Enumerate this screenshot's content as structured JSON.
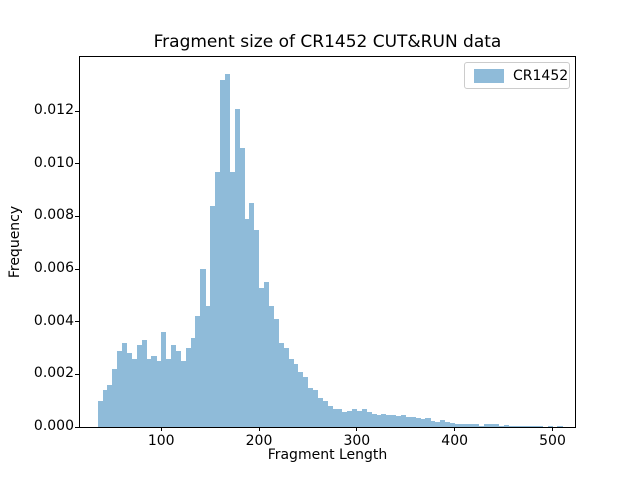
{
  "title": "Fragment size of CR1452 CUT&RUN data",
  "axes": {
    "xlabel": "Fragment Length",
    "ylabel": "Frequency",
    "x_ticks": [
      100,
      200,
      300,
      400,
      500
    ],
    "y_tick_labels": [
      "0.000",
      "0.002",
      "0.004",
      "0.006",
      "0.008",
      "0.010",
      "0.012"
    ]
  },
  "legend": {
    "items": [
      {
        "label": "CR1452",
        "color": "#8fbbd9"
      }
    ]
  },
  "colors": {
    "bar": "#8fbbd9",
    "axis": "#000000",
    "legend_border": "#cccccc",
    "background": "#ffffff"
  },
  "chart_data": {
    "type": "bar",
    "subtype": "histogram",
    "title": "Fragment size of CR1452 CUT&RUN data",
    "xlabel": "Fragment Length",
    "ylabel": "Frequency",
    "legend_position": "upper right",
    "grid": false,
    "series_name": "CR1452",
    "bin_start": 35,
    "bin_width": 5,
    "xlim": [
      17,
      523
    ],
    "ylim": [
      0,
      0.014058
    ],
    "values": [
      0.001,
      0.0014,
      0.0016,
      0.0022,
      0.0029,
      0.0032,
      0.0028,
      0.0026,
      0.0031,
      0.0033,
      0.0026,
      0.0027,
      0.0025,
      0.0036,
      0.0026,
      0.0031,
      0.0029,
      0.0025,
      0.003,
      0.0034,
      0.0042,
      0.006,
      0.0046,
      0.0084,
      0.0097,
      0.0132,
      0.0134,
      0.0097,
      0.0121,
      0.0106,
      0.0079,
      0.0085,
      0.0075,
      0.0053,
      0.0055,
      0.0046,
      0.0041,
      0.0032,
      0.003,
      0.0026,
      0.0024,
      0.0021,
      0.0019,
      0.0015,
      0.0014,
      0.0011,
      0.001,
      0.0008,
      0.0007,
      0.00067,
      0.00057,
      0.00061,
      0.00067,
      0.00061,
      0.00067,
      0.00057,
      0.00049,
      0.00044,
      0.00049,
      0.00044,
      0.00046,
      0.00042,
      0.00044,
      0.00037,
      0.00037,
      0.00033,
      0.00031,
      0.00033,
      0.00024,
      0.0002,
      0.00027,
      0.00019,
      0.00014,
      0.00011,
      0.00011,
      0.00011,
      0.00011,
      0.00011,
      4e-05,
      0.00011,
      0.00011,
      0.00011,
      4e-05,
      9e-05,
      4e-05,
      3e-05,
      2e-05,
      4e-05,
      2e-05,
      2e-05,
      2e-05,
      1e-05,
      2e-05,
      1e-05,
      2e-05
    ]
  }
}
